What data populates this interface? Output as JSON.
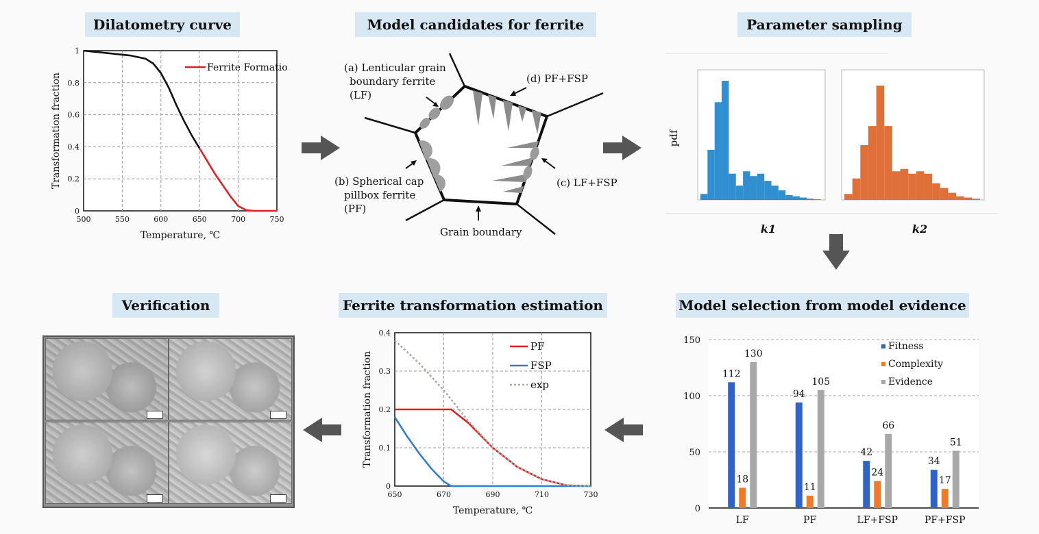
{
  "titles": {
    "dilatometry": "Dilatometry curve",
    "model_candidates": "Model candidates for ferrite",
    "parameter_sampling": "Parameter sampling",
    "verification": "Verification",
    "ferrite_estimation": "Ferrite transformation estimation",
    "model_selection": "Model selection from model evidence"
  },
  "model_candidates": {
    "lf_label": [
      "(a) Lenticular grain",
      "boundary ferrite",
      "(LF)"
    ],
    "pf_label": [
      "(b) Spherical cap",
      "pillbox ferrite",
      "(PF)"
    ],
    "lffsp_label": "(c) LF+FSP",
    "pffsp_label": "(d) PF+FSP",
    "grain_boundary_label": "Grain boundary"
  },
  "chart_data": [
    {
      "id": "dilatometry",
      "type": "line",
      "xlabel": "Temperature, ℃",
      "ylabel": "Transformation fraction",
      "xlim": [
        500,
        750
      ],
      "ylim": [
        0,
        1
      ],
      "xticks": [
        500,
        550,
        600,
        650,
        700,
        750
      ],
      "yticks": [
        0,
        0.2,
        0.4,
        0.6,
        0.8,
        1
      ],
      "grid": true,
      "legend_position": "top-right",
      "series": [
        {
          "name": "",
          "color": "#111111",
          "x": [
            500,
            520,
            540,
            560,
            580,
            590,
            600,
            610,
            620,
            630,
            640,
            650
          ],
          "y": [
            1.0,
            0.99,
            0.98,
            0.97,
            0.95,
            0.92,
            0.86,
            0.77,
            0.66,
            0.56,
            0.47,
            0.39
          ]
        },
        {
          "name": "Ferrite Formation",
          "color": "#e02020",
          "x": [
            650,
            660,
            670,
            680,
            690,
            700,
            710,
            720,
            750
          ],
          "y": [
            0.39,
            0.31,
            0.23,
            0.16,
            0.09,
            0.03,
            0.005,
            0,
            0
          ]
        }
      ]
    },
    {
      "id": "k1_hist",
      "type": "bar",
      "ylabel": "pdf",
      "xlabel": "k1",
      "color": "#2f8fd0",
      "values": [
        0.05,
        0.42,
        0.82,
        1.0,
        0.22,
        0.12,
        0.24,
        0.2,
        0.22,
        0.16,
        0.12,
        0.08,
        0.04,
        0.03,
        0.02,
        0.01,
        0.005
      ]
    },
    {
      "id": "k2_hist",
      "type": "bar",
      "xlabel": "k2",
      "color": "#e0703a",
      "values": [
        0.05,
        0.18,
        0.46,
        0.62,
        0.96,
        0.62,
        0.24,
        0.26,
        0.22,
        0.24,
        0.22,
        0.14,
        0.1,
        0.06,
        0.03,
        0.02,
        0.01
      ]
    },
    {
      "id": "ferrite_estimation",
      "type": "line",
      "xlabel": "Temperature, ℃",
      "ylabel": "Transformation fraction",
      "xlim": [
        650,
        730
      ],
      "ylim": [
        0,
        0.4
      ],
      "xticks": [
        650,
        670,
        690,
        710,
        730
      ],
      "yticks": [
        0,
        0.1,
        0.2,
        0.3,
        0.4
      ],
      "grid": true,
      "legend_position": "top-right",
      "series": [
        {
          "name": "PF",
          "color": "#e02020",
          "x": [
            650,
            670,
            673,
            680,
            690,
            700,
            710,
            720,
            730
          ],
          "y": [
            0.2,
            0.2,
            0.2,
            0.165,
            0.1,
            0.05,
            0.018,
            0.002,
            0
          ]
        },
        {
          "name": "FSP",
          "color": "#2f7fd0",
          "x": [
            650,
            655,
            660,
            665,
            670,
            673,
            730
          ],
          "y": [
            0.18,
            0.13,
            0.085,
            0.045,
            0.012,
            0,
            0
          ]
        },
        {
          "name": "exp",
          "color": "#b0a8a0",
          "x": [
            650,
            660,
            670,
            680,
            690,
            700,
            710,
            720,
            730
          ],
          "y": [
            0.38,
            0.32,
            0.25,
            0.17,
            0.1,
            0.05,
            0.018,
            0.002,
            0
          ]
        }
      ]
    },
    {
      "id": "model_selection",
      "type": "bar",
      "categories": [
        "LF",
        "PF",
        "LF+FSP",
        "PF+FSP"
      ],
      "ylim": [
        0,
        150
      ],
      "yticks": [
        0,
        50,
        100,
        150
      ],
      "grid": true,
      "legend_position": "top-right",
      "series": [
        {
          "name": "Fitness",
          "color": "#2f63c8",
          "values": [
            112,
            94,
            42,
            34
          ]
        },
        {
          "name": "Complexity",
          "color": "#ef7b2a",
          "values": [
            18,
            11,
            24,
            17
          ]
        },
        {
          "name": "Evidence",
          "color": "#a8a8a8",
          "values": [
            130,
            105,
            66,
            51
          ]
        }
      ]
    }
  ]
}
